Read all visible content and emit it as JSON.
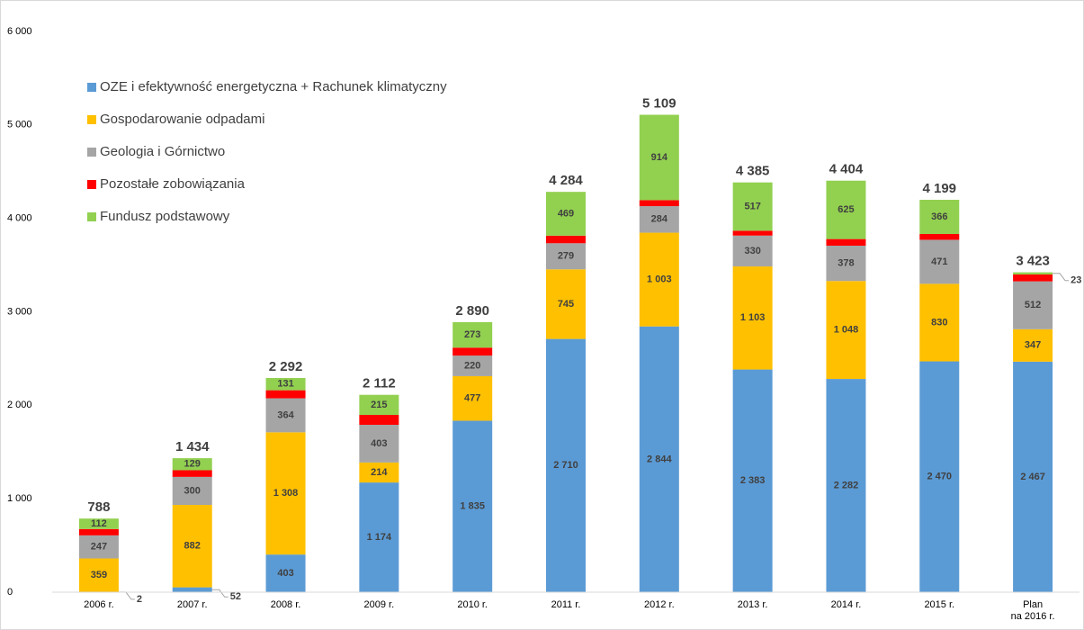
{
  "chart_data": {
    "type": "stacked_bar",
    "categories": [
      "2006 r.",
      "2007 r.",
      "2008 r.",
      "2009 r.",
      "2010 r.",
      "2011 r.",
      "2012 r.",
      "2013 r.",
      "2014 r.",
      "2015 r.",
      "Plan\nna 2016 r."
    ],
    "series": [
      {
        "name": "OZE i efektywność energetyczna + Rachunek klimatyczny",
        "color": "#5b9bd5",
        "values": [
          2,
          52,
          403,
          1174,
          1835,
          2710,
          2844,
          2383,
          2282,
          2470,
          2467
        ],
        "value_labels": [
          "2",
          "52",
          "403",
          "1 174",
          "1 835",
          "2 710",
          "2 844",
          "2 383",
          "2 282",
          "2 470",
          "2 467"
        ]
      },
      {
        "name": "Gospodarowanie odpadami",
        "color": "#ffc000",
        "values": [
          359,
          882,
          1308,
          214,
          477,
          745,
          1003,
          1103,
          1048,
          830,
          347
        ],
        "value_labels": [
          "359",
          "882",
          "1 308",
          "214",
          "477",
          "745",
          "1 003",
          "1 103",
          "1 048",
          "830",
          "347"
        ]
      },
      {
        "name": "Geologia i Górnictwo",
        "color": "#a5a5a5",
        "values": [
          247,
          300,
          364,
          403,
          220,
          279,
          284,
          330,
          378,
          471,
          512
        ]
      },
      {
        "name": "Pozostałe zobowiązania",
        "color": "#ff0000",
        "values": [
          68,
          71,
          86,
          106,
          85,
          81,
          64,
          52,
          71,
          62,
          74
        ]
      },
      {
        "name": "Fundusz podstawowy",
        "color": "#92d050",
        "values": [
          112,
          129,
          131,
          215,
          273,
          469,
          914,
          517,
          625,
          366,
          23
        ]
      }
    ],
    "series_labels_shown": [
      true,
      true,
      true,
      false,
      true
    ],
    "totals": {
      "values": [
        788,
        1434,
        2292,
        2112,
        2890,
        4284,
        5109,
        4385,
        4404,
        4199,
        3423
      ],
      "value_labels": [
        "788",
        "1 434",
        "2 292",
        "2 112",
        "2 890",
        "4 284",
        "5 109",
        "4 385",
        "4 404",
        "4 199",
        "3 423"
      ]
    },
    "ylim": [
      0,
      6000
    ],
    "yticks": [
      0,
      {
        "value": 1000,
        "label": "1 000"
      },
      {
        "value": 2000,
        "label": "2 000"
      },
      {
        "value": 3000,
        "label": "3 000"
      },
      {
        "value": 4000,
        "label": "4 000"
      },
      {
        "value": 5000,
        "label": "5 000"
      },
      {
        "value": 6000,
        "label": "6 000"
      }
    ],
    "grid": false,
    "legend": "upper left"
  }
}
